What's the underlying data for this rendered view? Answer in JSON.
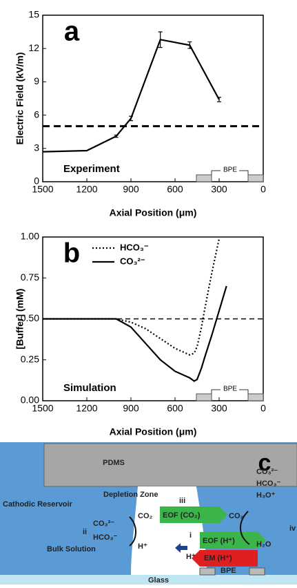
{
  "chart_data": [
    {
      "type": "line",
      "panel_label": "a",
      "annotation": "Experiment",
      "xlabel": "Axial Position (μm)",
      "ylabel": "Electric Field (kV/m)",
      "x": [
        1500,
        1200,
        1000,
        900,
        700,
        500,
        300
      ],
      "series": [
        {
          "color": "#000000",
          "dash": "solid",
          "values": [
            2.7,
            2.8,
            4.1,
            5.7,
            12.8,
            12.3,
            7.4
          ],
          "errors": [
            0,
            0,
            0.1,
            0.2,
            0.7,
            0.3,
            0.2
          ]
        }
      ],
      "xlim": [
        1500,
        0
      ],
      "xticks": [
        1500,
        1200,
        900,
        600,
        300,
        0
      ],
      "ylim": [
        0,
        15
      ],
      "yticks": [
        0,
        3,
        6,
        9,
        12,
        15
      ],
      "reference_line": 5,
      "bpe_label": "BPE"
    },
    {
      "type": "line",
      "panel_label": "b",
      "annotation": "Simulation",
      "xlabel": "Axial Position (μm)",
      "ylabel": "[Buffer] (mM)",
      "x": [
        1500,
        1000,
        900,
        800,
        700,
        600,
        500,
        470,
        450,
        420,
        400,
        350,
        300,
        250
      ],
      "series": [
        {
          "name": "HCO₃⁻",
          "color": "#000000",
          "dash": "dotted",
          "values": [
            0.5,
            0.5,
            0.48,
            0.44,
            0.38,
            0.32,
            0.28,
            0.29,
            0.33,
            0.45,
            0.55,
            0.78,
            0.99,
            null
          ]
        },
        {
          "name": "CO₃²⁻",
          "color": "#000000",
          "dash": "solid",
          "values": [
            0.5,
            0.5,
            0.45,
            0.35,
            0.25,
            0.18,
            0.14,
            0.12,
            0.13,
            0.2,
            0.26,
            0.4,
            0.55,
            0.7
          ]
        }
      ],
      "xlim": [
        1500,
        0
      ],
      "xticks": [
        1500,
        1200,
        900,
        600,
        300,
        0
      ],
      "ylim": [
        0,
        1
      ],
      "yticks": [
        {
          "value": 0,
          "label": "0.00"
        },
        {
          "value": 0.25,
          "label": "0.25"
        },
        {
          "value": 0.5,
          "label": "0.50"
        },
        {
          "value": 0.75,
          "label": "0.75"
        },
        {
          "value": 1,
          "label": "1.00"
        }
      ],
      "reference_line": 0.5,
      "bpe_label": "BPE",
      "legend": "upper-left"
    }
  ],
  "diagram": {
    "panel_label": "c",
    "pdms": "PDMS",
    "cathodic": "Cathodic Reservoir",
    "depletion": "Depletion Zone",
    "iii": "iii",
    "co2": "CO₂",
    "eof_co2": "EOF (CO₂)",
    "ii": "ii",
    "co3": "CO₃²⁻",
    "hco3": "HCO₃⁻",
    "h": "H⁺",
    "i": "i",
    "h2": "H⁺",
    "eof_h": "EOF (H⁺)",
    "em_h": "EM (H⁺)",
    "bulk": "Bulk Solution",
    "bpe": "BPE",
    "glass": "Glass",
    "r_co3": "CO₃²⁻",
    "r_hco3": "HCO₃⁻",
    "r_h3o": "H₃O⁺",
    "r_co2": "CO₂",
    "r_h2o": "H₂O",
    "iv": "iv"
  }
}
